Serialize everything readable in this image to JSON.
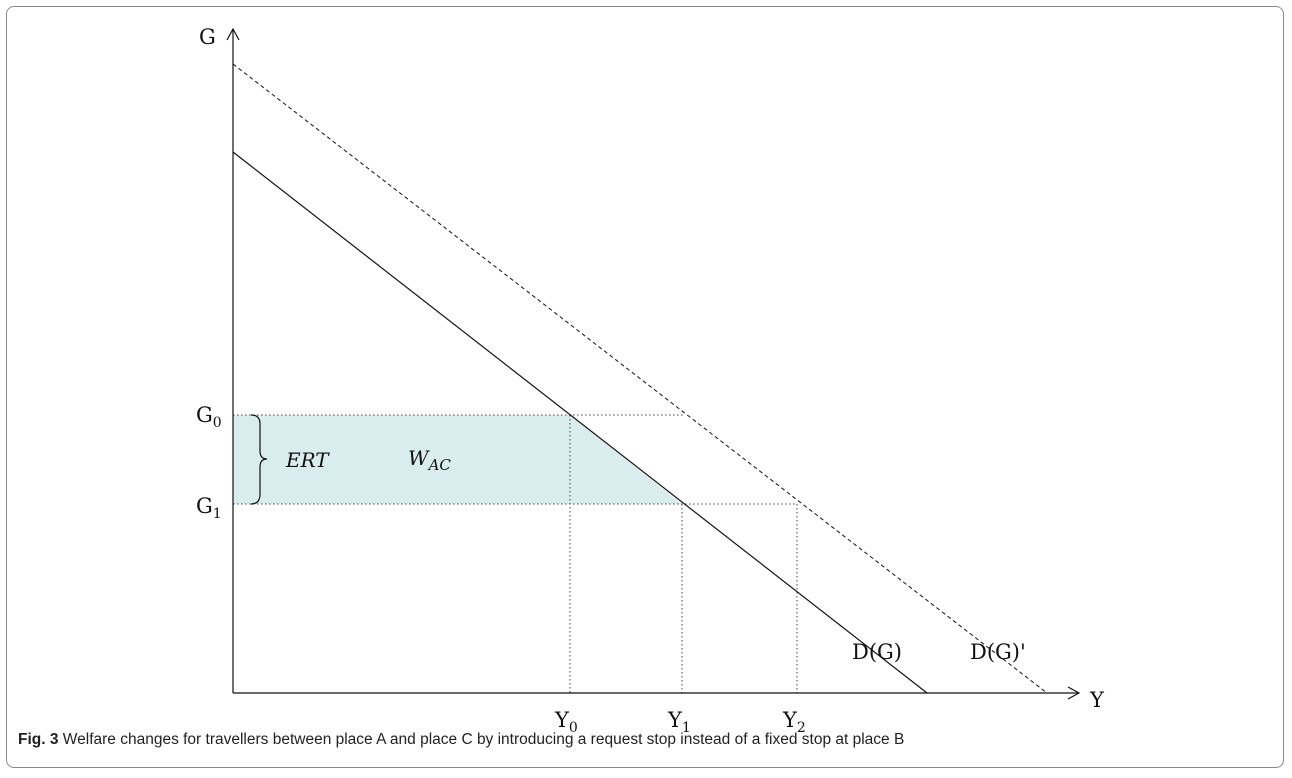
{
  "axes": {
    "x_label": "Y",
    "y_label": "G"
  },
  "curves": {
    "demand": "D(G)",
    "demand_shifted": "D(G)'"
  },
  "ticks": {
    "g0": {
      "base": "G",
      "sub": "0"
    },
    "g1": {
      "base": "G",
      "sub": "1"
    },
    "y0": {
      "base": "Y",
      "sub": "0"
    },
    "y1": {
      "base": "Y",
      "sub": "1"
    },
    "y2": {
      "base": "Y",
      "sub": "2"
    }
  },
  "annotations": {
    "ert": "ERT",
    "welfare": {
      "base": "W",
      "sub": "AC"
    }
  },
  "caption": {
    "label": "Fig. 3",
    "text": " Welfare changes for travellers between place A and place C by introducing a request stop instead of a fixed stop at place B"
  },
  "colors": {
    "shaded_area": "#d9ecee",
    "line": "#111111"
  }
}
